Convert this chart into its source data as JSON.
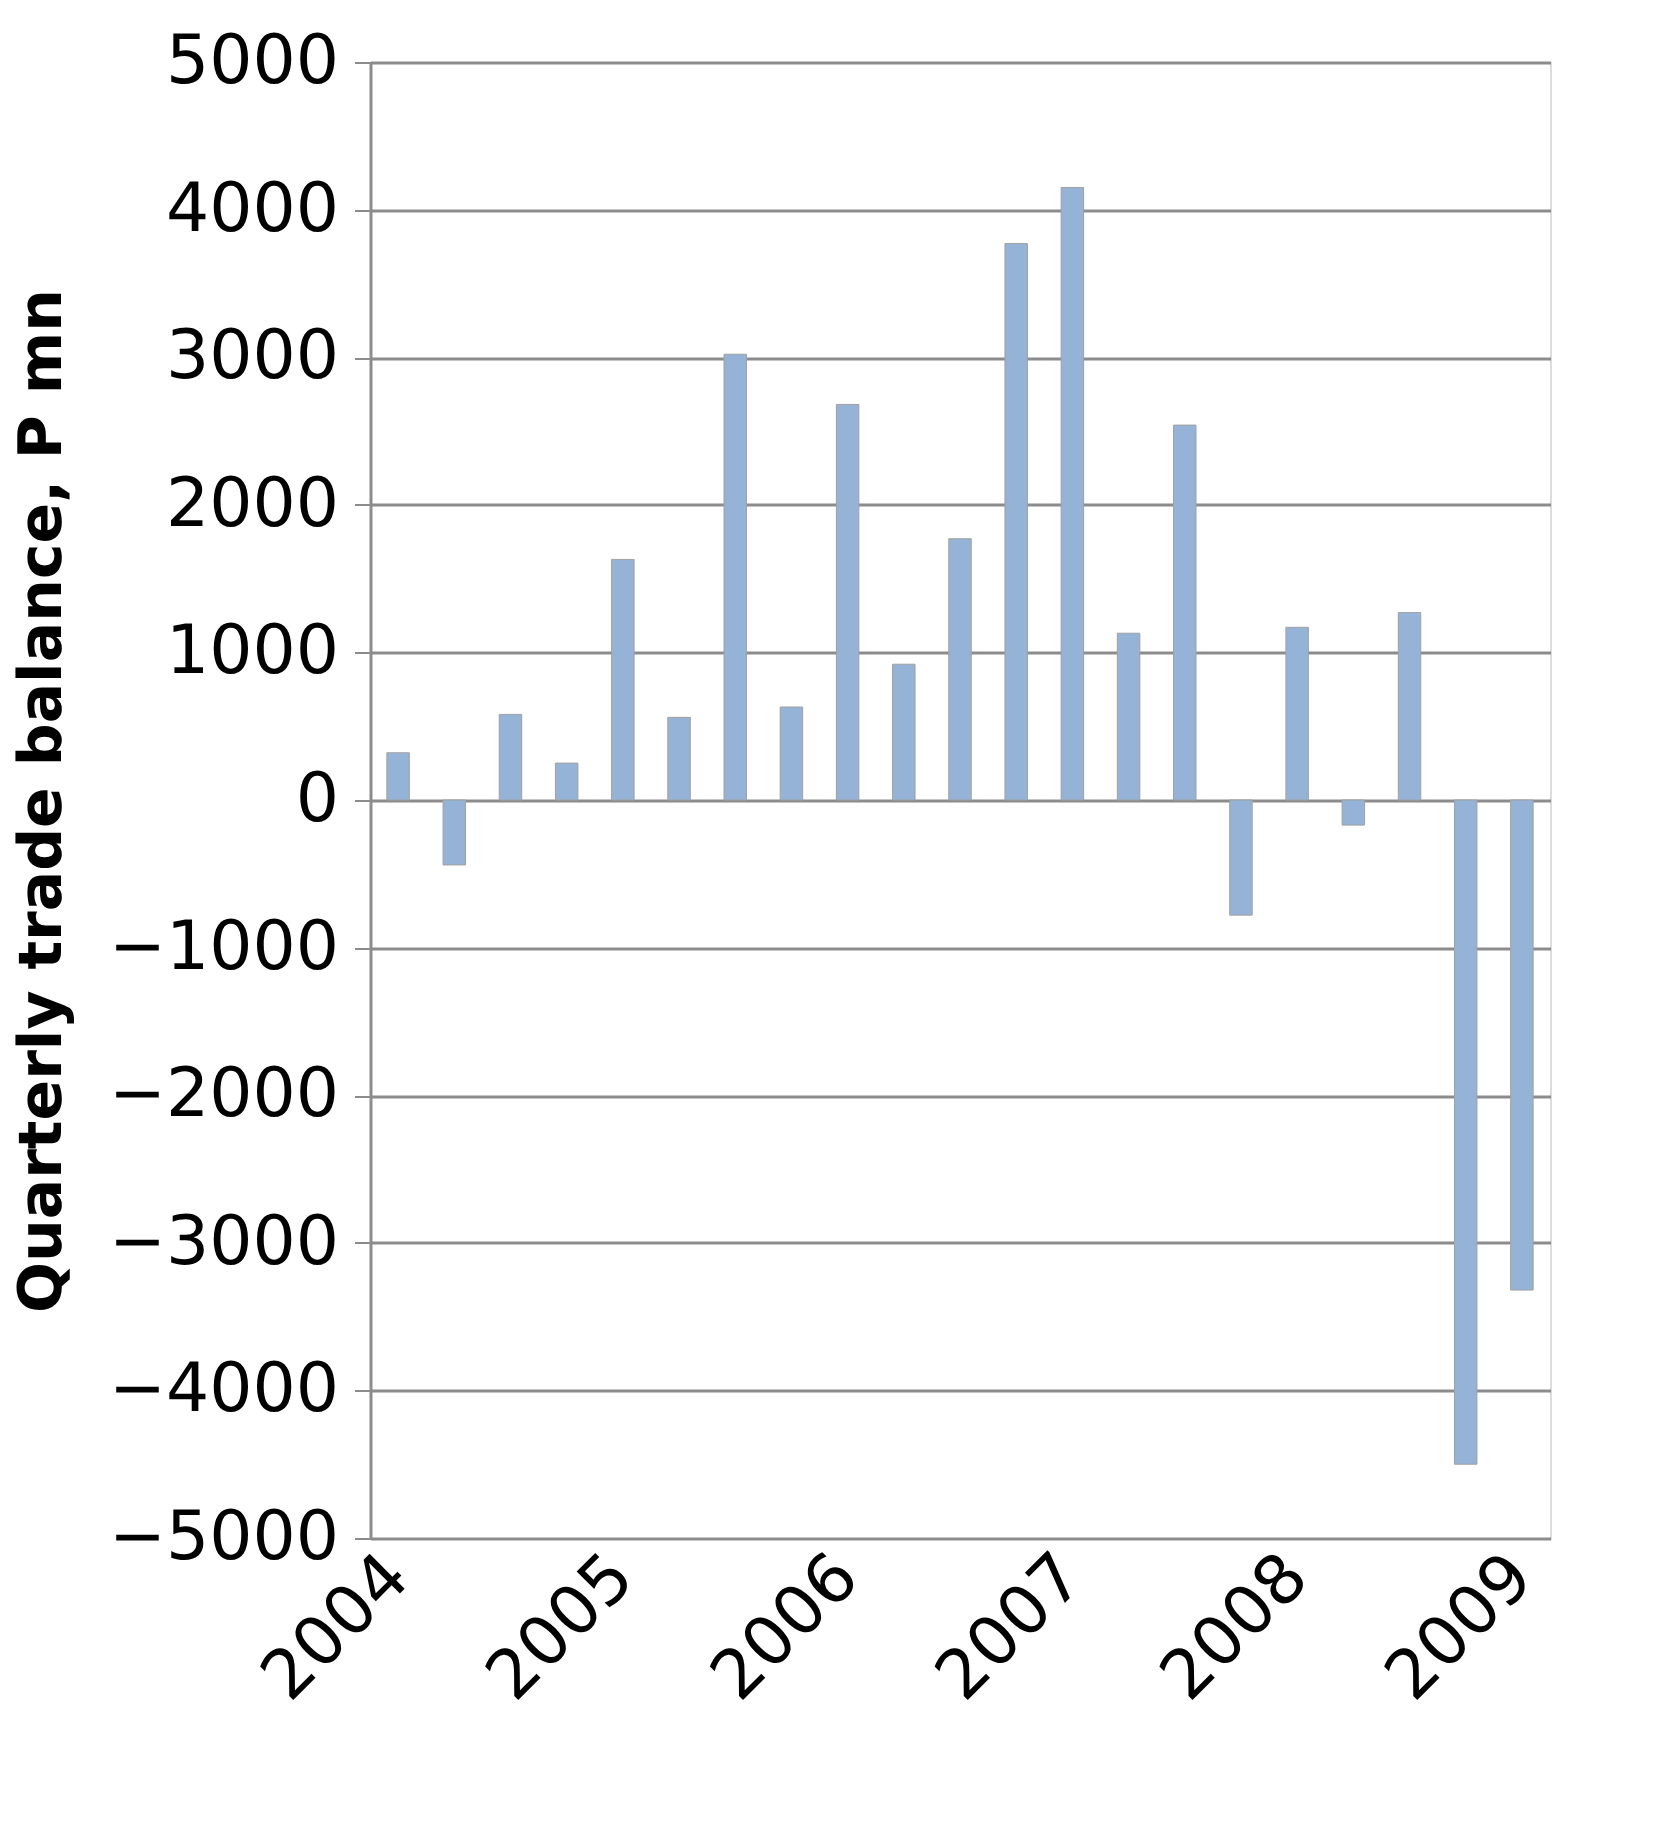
{
  "chart_data": {
    "type": "bar",
    "ylabel": "Quarterly trade balance, P mn",
    "categories": [
      "2004",
      null,
      null,
      null,
      "2005",
      null,
      null,
      null,
      "2006",
      null,
      null,
      null,
      "2007",
      null,
      null,
      null,
      "2008",
      null,
      null,
      null,
      "2009"
    ],
    "values": [
      320,
      -440,
      580,
      250,
      1630,
      560,
      3020,
      630,
      2680,
      920,
      1770,
      3770,
      4150,
      1130,
      2540,
      -780,
      1170,
      -170,
      1270,
      -4500,
      -3320
    ],
    "color": "#95b3d7",
    "ylim": [
      -5000,
      5000
    ],
    "yticks": [
      -5000,
      -4000,
      -3000,
      -2000,
      -1000,
      0,
      1000,
      2000,
      3000,
      4000,
      5000
    ],
    "grid": "y"
  }
}
